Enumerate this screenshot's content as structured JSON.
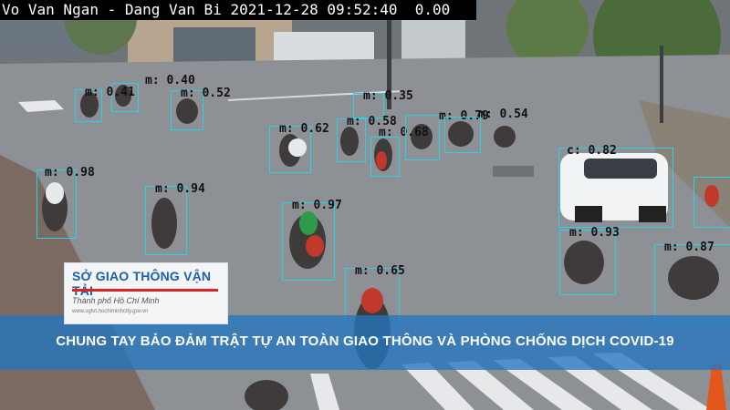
{
  "osd": {
    "text": "Vo Van Ngan - Dang Van Bi 2021-12-28 09:52:40  0.00"
  },
  "overlay": {
    "logo_title": "SỞ GIAO THÔNG VẬN TẢI",
    "logo_subtitle": "Thành phố Hồ Chí Minh",
    "logo_tiny": "www.sgtvt.hochiminhcity.gov.vn",
    "banner_text": "CHUNG TAY BẢO ĐẢM TRẬT TỰ AN TOÀN GIAO THÔNG VÀ PHÒNG CHỐNG DỊCH COVID-19"
  },
  "colors": {
    "box": "#27d3e6",
    "label": "#111111",
    "banner": "#2476c0"
  },
  "detections": [
    {
      "label": "m: 0.40"
    },
    {
      "label": "m: 0.41"
    },
    {
      "label": "m: 0.52"
    },
    {
      "label": "m: 0.35"
    },
    {
      "label": "m: 0.58"
    },
    {
      "label": "m: 0.68"
    },
    {
      "label": "m: 0.79"
    },
    {
      "label": "m: 0.54"
    },
    {
      "label": "m: 0.62"
    },
    {
      "label": "c: 0.82"
    },
    {
      "label": "m: 0.98"
    },
    {
      "label": "m: 0.94"
    },
    {
      "label": "m: 0.97"
    },
    {
      "label": "m: 0.93"
    },
    {
      "label": "m: 0.87"
    },
    {
      "label": "m: 0.65"
    }
  ]
}
